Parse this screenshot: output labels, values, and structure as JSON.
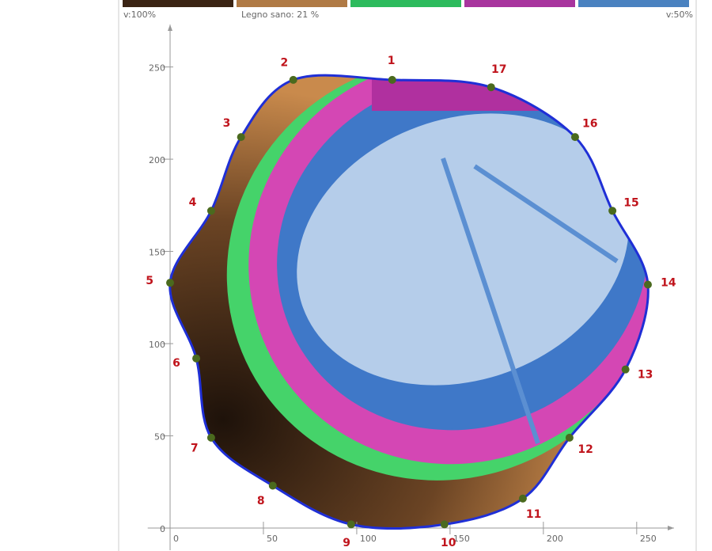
{
  "chart_data": {
    "type": "tomogram",
    "legend": {
      "left_label": "v:100%",
      "center_label": "Legno sano: 21 %",
      "right_label": "v:50%",
      "colors": [
        "#3b2414",
        "#b07a45",
        "#2dbb5d",
        "#a8359e",
        "#4a82c0"
      ]
    },
    "xlim": [
      -12,
      270
    ],
    "ylim": [
      -12,
      273
    ],
    "xticks": [
      0,
      50,
      100,
      150,
      200,
      250
    ],
    "yticks": [
      0,
      50,
      100,
      150,
      200,
      250
    ],
    "grid": false,
    "outline_color": "#1f2fd6",
    "point_color": "#4a6a1e",
    "sensors": {
      "labels": [
        "1",
        "2",
        "3",
        "4",
        "5",
        "6",
        "7",
        "8",
        "9",
        "10",
        "11",
        "12",
        "13",
        "14",
        "15",
        "16",
        "17"
      ],
      "x": [
        119,
        66,
        38,
        22,
        0,
        14,
        22,
        55,
        97,
        147,
        189,
        214,
        244,
        256,
        237,
        217,
        172
      ],
      "y": [
        243,
        243,
        212,
        172,
        133,
        92,
        49,
        23,
        2,
        2,
        16,
        49,
        86,
        132,
        172,
        212,
        239
      ]
    }
  }
}
